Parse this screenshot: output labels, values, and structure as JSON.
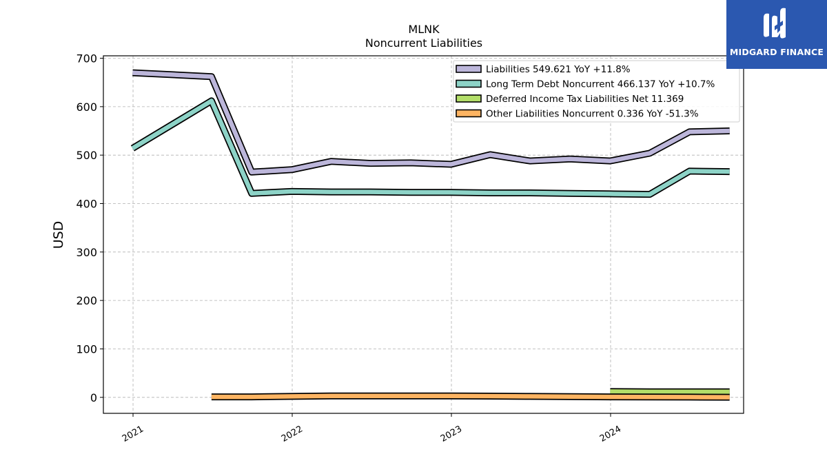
{
  "chart_data": {
    "type": "line",
    "title": "MLNK",
    "subtitle": "Noncurrent  Liabilities",
    "xlabel": "",
    "ylabel": "USD",
    "ylim": [
      -33,
      705
    ],
    "xlim": [
      "2020-10-25",
      "2024-11-01"
    ],
    "yticks": [
      0,
      100,
      200,
      300,
      400,
      500,
      600,
      700
    ],
    "xticks": [
      "2021-01-01",
      "2022-01-01",
      "2023-01-01",
      "2024-01-01"
    ],
    "xtick_labels": [
      "2021",
      "2022",
      "2023",
      "2024"
    ],
    "grid": true,
    "legend_position": "top-right",
    "series": [
      {
        "name": "Liabilities",
        "legend_label": "Liabilities  549.621 YoY +11.8%",
        "color": "#bcb6da",
        "x": [
          "2020-12-31",
          "2021-06-30",
          "2021-09-30",
          "2021-12-31",
          "2022-03-31",
          "2022-06-30",
          "2022-09-30",
          "2022-12-31",
          "2023-03-31",
          "2023-06-30",
          "2023-09-30",
          "2023-12-31",
          "2024-03-31",
          "2024-06-30",
          "2024-09-30"
        ],
        "values": [
          670,
          662,
          465,
          470,
          487,
          483,
          484,
          481,
          501,
          488,
          492,
          488,
          504,
          548,
          550
        ]
      },
      {
        "name": "Long Term Debt Noncurrent",
        "legend_label": "Long Term Debt Noncurrent  466.137 YoY +10.7%",
        "color": "#8dd3c7",
        "x": [
          "2020-12-31",
          "2021-06-30",
          "2021-09-30",
          "2021-12-31",
          "2022-03-31",
          "2022-06-30",
          "2022-09-30",
          "2022-12-31",
          "2023-03-31",
          "2023-06-30",
          "2023-09-30",
          "2023-12-31",
          "2024-03-31",
          "2024-06-30",
          "2024-09-30"
        ],
        "values": [
          514,
          612,
          421,
          425,
          424,
          424,
          423,
          423,
          422,
          422,
          421,
          420,
          419,
          467,
          466
        ]
      },
      {
        "name": "Deferred Income Tax Liabilities Net",
        "legend_label": "Deferred Income Tax Liabilities Net  11.369",
        "color": "#b3de69",
        "x": [
          "2023-12-31",
          "2024-03-31",
          "2024-06-30",
          "2024-09-30"
        ],
        "values": [
          12,
          11.5,
          11.4,
          11.4
        ]
      },
      {
        "name": "Other Liabilities Noncurrent",
        "legend_label": "Other Liabilities Noncurrent  0.336 YoY -51.3%",
        "color": "#fdb462",
        "x": [
          "2021-06-30",
          "2021-09-30",
          "2021-12-31",
          "2022-03-31",
          "2022-06-30",
          "2022-09-30",
          "2022-12-31",
          "2023-03-31",
          "2023-06-30",
          "2023-09-30",
          "2023-12-31",
          "2024-03-31",
          "2024-06-30",
          "2024-09-30"
        ],
        "values": [
          1,
          1,
          2,
          3,
          3,
          3,
          3,
          2.5,
          2,
          1.5,
          1,
          0.8,
          0.5,
          0.336
        ]
      }
    ]
  },
  "logo": {
    "text": "MIDGARD FINANCE",
    "background": "#2b58b0"
  }
}
